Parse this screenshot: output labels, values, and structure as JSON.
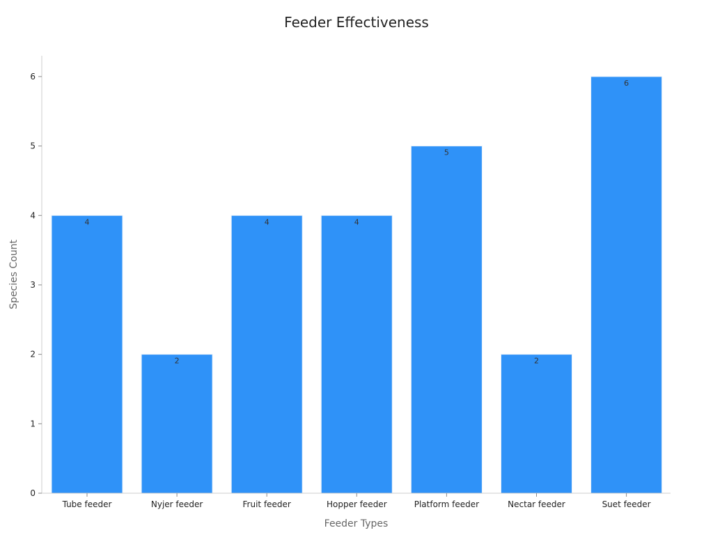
{
  "chart_data": {
    "type": "bar",
    "title": "Feeder Effectiveness",
    "xlabel": "Feeder Types",
    "ylabel": "Species Count",
    "categories": [
      "Tube feeder",
      "Nyjer feeder",
      "Fruit feeder",
      "Hopper feeder",
      "Platform feeder",
      "Nectar feeder",
      "Suet feeder"
    ],
    "values": [
      4,
      2,
      4,
      4,
      5,
      2,
      6
    ],
    "ylim": [
      0,
      6.3
    ],
    "yticks": [
      0,
      1,
      2,
      3,
      4,
      5,
      6
    ],
    "grid": false,
    "data_labels": true,
    "bar_color": "#2f92f8",
    "axis_color": "#cccccc"
  }
}
